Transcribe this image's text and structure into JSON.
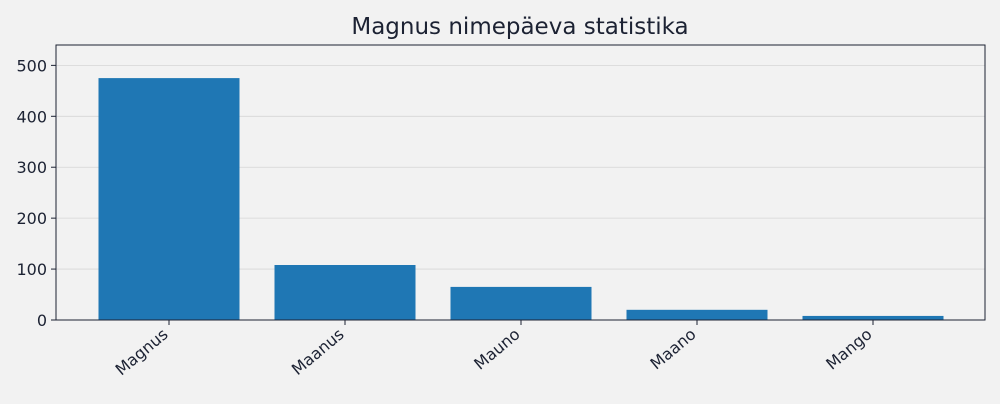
{
  "chart_data": {
    "type": "bar",
    "title": "Magnus nimepäeva statistika",
    "xlabel": "",
    "ylabel": "",
    "categories": [
      "Magnus",
      "Maanus",
      "Mauno",
      "Maano",
      "Mango"
    ],
    "values": [
      475,
      108,
      65,
      20,
      8
    ],
    "ylim": [
      0,
      540
    ],
    "yticks": [
      0,
      100,
      200,
      300,
      400,
      500
    ],
    "grid": "horizontal",
    "legend": "none",
    "colors": {
      "bar": "#1f77b4",
      "grid": "#d6d6d6",
      "axis": "#1c2233",
      "background": "#f2f2f2"
    }
  }
}
